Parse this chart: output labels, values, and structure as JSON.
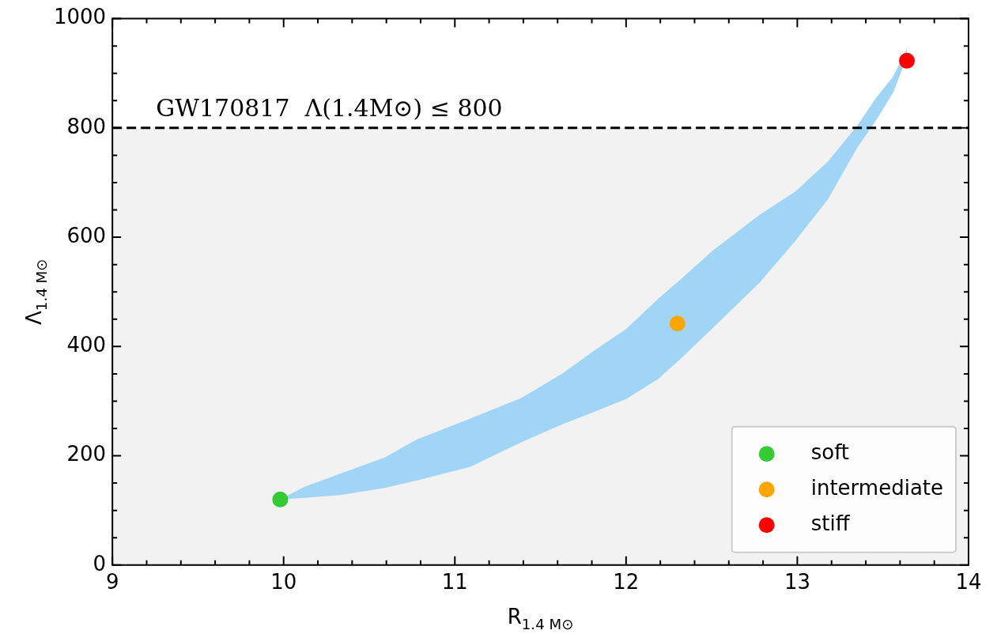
{
  "chart_data": {
    "type": "scatter",
    "xlabel": "R$_{1.4 M⊙}$",
    "ylabel": "Λ$_{1.4 M⊙}$",
    "xlim": [
      9,
      14
    ],
    "ylim": [
      0,
      1000
    ],
    "xticks": [
      9,
      {
        "value": 9.2,
        "label": null
      },
      {
        "value": 9.4,
        "label": null
      },
      {
        "value": 9.6,
        "label": null
      },
      {
        "value": 9.8,
        "label": null
      },
      10,
      {
        "value": 10.2,
        "label": null
      },
      {
        "value": 10.4,
        "label": null
      },
      {
        "value": 10.6,
        "label": null
      },
      {
        "value": 10.8,
        "label": null
      },
      11,
      {
        "value": 11.2,
        "label": null
      },
      {
        "value": 11.4,
        "label": null
      },
      {
        "value": 11.6,
        "label": null
      },
      {
        "value": 11.8,
        "label": null
      },
      12,
      {
        "value": 12.2,
        "label": null
      },
      {
        "value": 12.4,
        "label": null
      },
      {
        "value": 12.6,
        "label": null
      },
      {
        "value": 12.8,
        "label": null
      },
      13,
      {
        "value": 13.2,
        "label": null
      },
      {
        "value": 13.4,
        "label": null
      },
      {
        "value": 13.6,
        "label": null
      },
      {
        "value": 13.8,
        "label": null
      },
      14
    ],
    "yticks": [
      0,
      {
        "value": 50,
        "label": null
      },
      {
        "value": 100,
        "label": null
      },
      {
        "value": 150,
        "label": null
      },
      200,
      {
        "value": 250,
        "label": null
      },
      {
        "value": 300,
        "label": null
      },
      {
        "value": 350,
        "label": null
      },
      400,
      {
        "value": 450,
        "label": null
      },
      {
        "value": 500,
        "label": null
      },
      {
        "value": 550,
        "label": null
      },
      600,
      {
        "value": 650,
        "label": null
      },
      {
        "value": 700,
        "label": null
      },
      {
        "value": 750,
        "label": null
      },
      800,
      {
        "value": 850,
        "label": null
      },
      {
        "value": 900,
        "label": null
      },
      {
        "value": 950,
        "label": null
      },
      1000
    ],
    "grid": false,
    "legend": "bottom right",
    "marker": "circle",
    "bands": [
      {
        "axis": "y",
        "from": 0,
        "to": 800,
        "color": "#f2f2f2"
      }
    ],
    "ref_lines": [
      {
        "axis": "y",
        "value": 800,
        "label": "GW170817  Λ(1.4M⊙) ≤ 800",
        "color": "#000000",
        "line_style": "dashed"
      }
    ],
    "series": [
      {
        "type": "area",
        "color": "#a0d5f6",
        "values": [
          null,
          null,
          null,
          null,
          null,
          null,
          null,
          null,
          null,
          null,
          null,
          null,
          null,
          null,
          null,
          null,
          null,
          null,
          null,
          null
        ],
        "x": [
          9.98,
          10.12,
          10.33,
          10.59,
          10.78,
          11.09,
          11.39,
          11.63,
          11.82,
          12.0,
          12.19,
          12.33,
          12.5,
          12.78,
          12.99,
          13.18,
          13.35,
          13.46,
          13.56,
          13.64
        ],
        "lower": [
          120,
          123,
          128,
          141,
          155,
          180,
          225,
          258,
          281,
          304,
          341,
          381,
          432,
          517,
          594,
          670,
          764,
          814,
          865,
          930
        ],
        "upper": [
          120,
          143,
          167,
          197,
          230,
          268,
          306,
          351,
          394,
          432,
          488,
          526,
          574,
          641,
          684,
          739,
          804,
          855,
          894,
          945
        ]
      },
      {
        "name": "soft",
        "color": "#33cc33",
        "x": [
          9.98
        ],
        "values": [
          120
        ]
      },
      {
        "name": "intermediate",
        "color": "#ffa500",
        "x": [
          12.3
        ],
        "values": [
          442
        ]
      },
      {
        "name": "stiff",
        "color": "#ff0000",
        "x": [
          13.64
        ],
        "values": [
          923
        ]
      }
    ]
  }
}
